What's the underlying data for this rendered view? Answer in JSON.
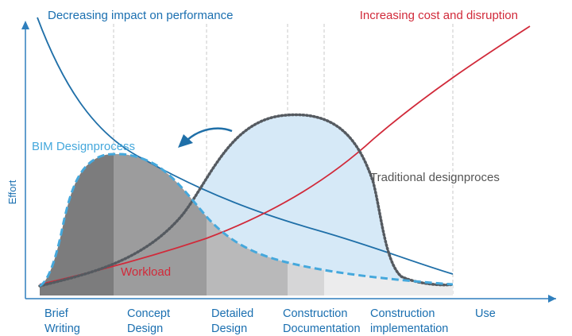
{
  "labels": {
    "top_left": "Decreasing impact on performance",
    "top_right": "Increasing cost and disruption",
    "y_axis": "Effort",
    "bim": "BIM Designprocess",
    "traditional": "Traditional designproces",
    "workload": "Workload"
  },
  "phases": [
    {
      "line1": "Brief",
      "line2": "Writing"
    },
    {
      "line1": "Concept",
      "line2": "Design"
    },
    {
      "line1": "Detailed",
      "line2": "Design"
    },
    {
      "line1": "Construction",
      "line2": "Documentation"
    },
    {
      "line1": "Construction",
      "line2": "implementation"
    },
    {
      "line1": "Use",
      "line2": ""
    }
  ],
  "colors": {
    "blue_text": "#1a6fb0",
    "impact_curve": "#1f6fa8",
    "cost_curve": "#d12a3a",
    "bim_curve": "#45a8dc",
    "traditional_curve": "#555a60",
    "traditional_fill": "#d6e9f7",
    "axis": "#2f7fbd",
    "phase_fills": [
      "#7c7c7d",
      "#9c9c9d",
      "#b9b9ba",
      "#d6d6d7",
      "#ececed",
      "#ffffff"
    ]
  },
  "icons": {
    "shift_arrow": "curved-arrow-left-icon"
  }
}
